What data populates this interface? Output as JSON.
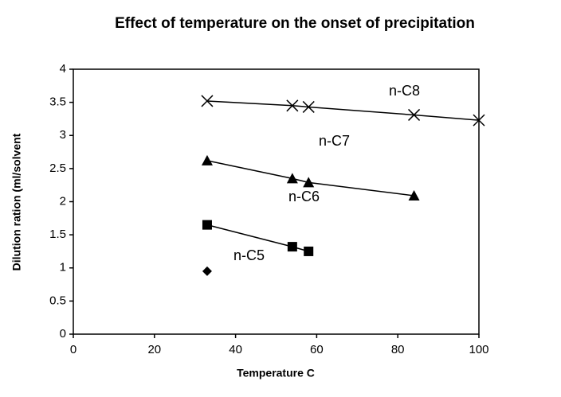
{
  "chart_data": {
    "type": "line",
    "title": "Effect of temperature on the onset of precipitation",
    "xlabel": "Temperature C",
    "ylabel": "Dilution ration (ml/solvent",
    "series": [
      {
        "name": "n-C8",
        "color": "#000000",
        "marker": "x",
        "x": [
          33,
          54,
          58,
          84,
          100
        ],
        "values": [
          3.52,
          3.45,
          3.43,
          3.31,
          3.23
        ]
      },
      {
        "name": "n-C7",
        "color": "#000000",
        "marker": "triangle",
        "x": [
          33,
          54,
          58,
          84
        ],
        "values": [
          2.62,
          2.35,
          2.29,
          2.09
        ]
      },
      {
        "name": "n-C6",
        "color": "#000000",
        "marker": "square",
        "x": [
          33,
          54,
          58
        ],
        "values": [
          1.65,
          1.32,
          1.25
        ]
      },
      {
        "name": "n-C5",
        "color": "#000000",
        "marker": "diamond",
        "x": [
          33
        ],
        "values": [
          0.95
        ]
      }
    ],
    "xlim": [
      0,
      100
    ],
    "xticks": [
      0,
      20,
      40,
      60,
      80,
      100
    ],
    "ylim": [
      0,
      4
    ],
    "yticks": [
      0,
      0.5,
      1,
      1.5,
      2,
      2.5,
      3,
      3.5,
      4
    ],
    "grid": false
  }
}
